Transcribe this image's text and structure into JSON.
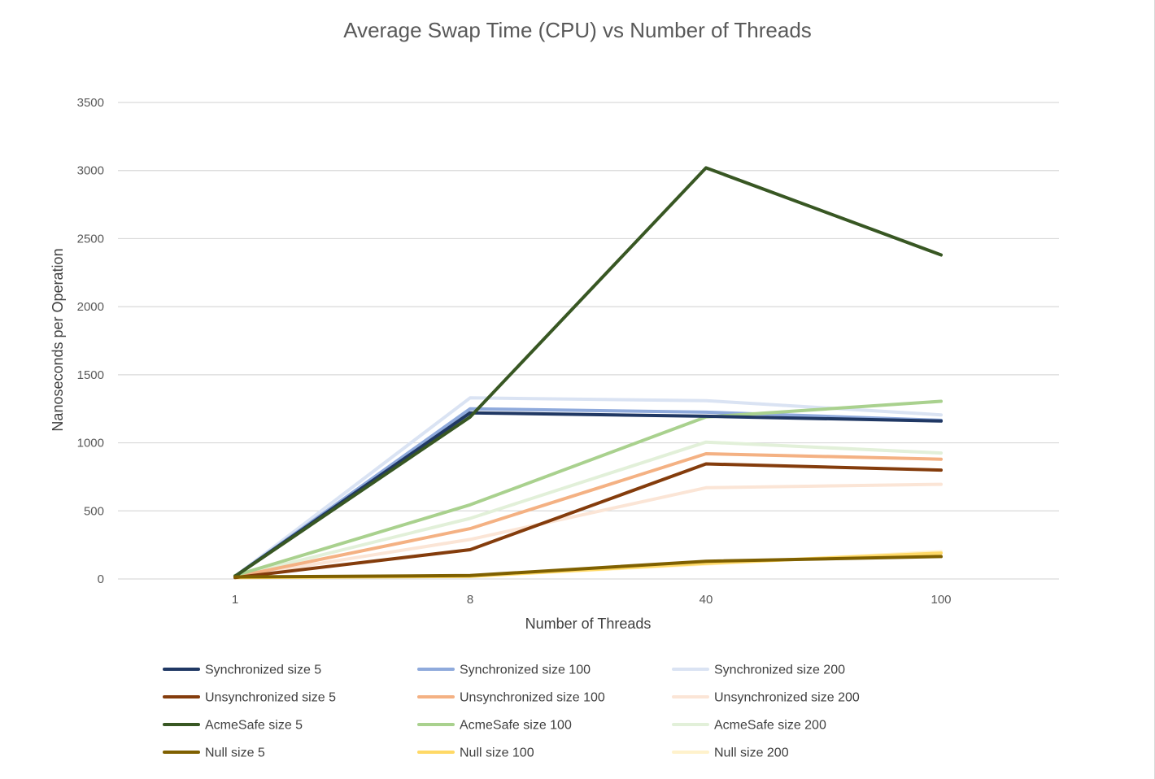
{
  "chart_data": {
    "type": "line",
    "title": "Average Swap Time (CPU) vs Number of Threads",
    "xlabel": "Number of Threads",
    "ylabel": "Nanoseconds per Operation",
    "categories": [
      "1",
      "8",
      "40",
      "100"
    ],
    "ylim": [
      0,
      3500
    ],
    "yticks": [
      0,
      500,
      1000,
      1500,
      2000,
      2500,
      3000,
      3500
    ],
    "grid": true,
    "legend_position": "bottom",
    "series": [
      {
        "name": "Synchronized size 5",
        "color": "#203864",
        "values": [
          20,
          1220,
          1195,
          1160
        ]
      },
      {
        "name": "Synchronized size 100",
        "color": "#8FAADC",
        "values": [
          20,
          1250,
          1225,
          1165
        ]
      },
      {
        "name": "Synchronized size 200",
        "color": "#DAE3F3",
        "values": [
          20,
          1330,
          1310,
          1205
        ]
      },
      {
        "name": "Unsynchronized size 5",
        "color": "#843C0C",
        "values": [
          10,
          215,
          845,
          800
        ]
      },
      {
        "name": "Unsynchronized size 100",
        "color": "#F4B183",
        "values": [
          15,
          370,
          920,
          880
        ]
      },
      {
        "name": "Unsynchronized size 200",
        "color": "#FBE5D6",
        "values": [
          15,
          290,
          670,
          695
        ]
      },
      {
        "name": "AcmeSafe size 5",
        "color": "#385723",
        "values": [
          20,
          1190,
          3020,
          2380
        ]
      },
      {
        "name": "AcmeSafe size 100",
        "color": "#A9D18E",
        "values": [
          25,
          545,
          1190,
          1305
        ]
      },
      {
        "name": "AcmeSafe size 200",
        "color": "#E2F0D9",
        "values": [
          20,
          445,
          1005,
          925
        ]
      },
      {
        "name": "Null size 5",
        "color": "#7F6000",
        "values": [
          15,
          25,
          130,
          165
        ]
      },
      {
        "name": "Null size 100",
        "color": "#FFD966",
        "values": [
          10,
          20,
          115,
          190
        ]
      },
      {
        "name": "Null size 200",
        "color": "#FFF2CC",
        "values": [
          10,
          20,
          110,
          200
        ]
      }
    ]
  }
}
